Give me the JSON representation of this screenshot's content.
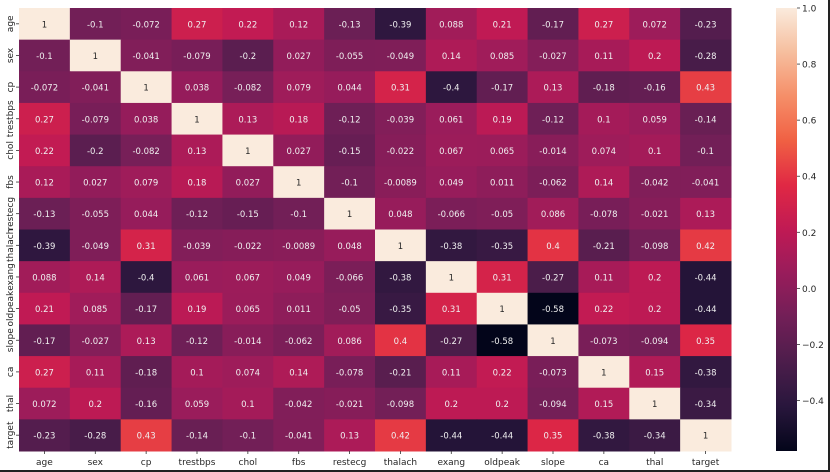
{
  "chart_data": {
    "type": "heatmap",
    "colormap": "rocket",
    "vmin": -0.58,
    "vmax": 1.0,
    "x_labels": [
      "age",
      "sex",
      "cp",
      "trestbps",
      "chol",
      "fbs",
      "restecg",
      "thalach",
      "exang",
      "oldpeak",
      "slope",
      "ca",
      "thal",
      "target"
    ],
    "y_labels": [
      "age",
      "sex",
      "cp",
      "trestbps",
      "chol",
      "fbs",
      "restecg",
      "thalach",
      "exang",
      "oldpeak",
      "slope",
      "ca",
      "thal",
      "target"
    ],
    "values": [
      [
        1,
        -0.1,
        -0.072,
        0.27,
        0.22,
        0.12,
        -0.13,
        -0.39,
        0.088,
        0.21,
        -0.17,
        0.27,
        0.072,
        -0.23
      ],
      [
        -0.1,
        1,
        -0.041,
        -0.079,
        -0.2,
        0.027,
        -0.055,
        -0.049,
        0.14,
        0.085,
        -0.027,
        0.11,
        0.2,
        -0.28
      ],
      [
        -0.072,
        -0.041,
        1,
        0.038,
        -0.082,
        0.079,
        0.044,
        0.31,
        -0.4,
        -0.17,
        0.13,
        -0.18,
        -0.16,
        0.43
      ],
      [
        0.27,
        -0.079,
        0.038,
        1,
        0.13,
        0.18,
        -0.12,
        -0.039,
        0.061,
        0.19,
        -0.12,
        0.1,
        0.059,
        -0.14
      ],
      [
        0.22,
        -0.2,
        -0.082,
        0.13,
        1,
        0.027,
        -0.15,
        -0.022,
        0.067,
        0.065,
        -0.014,
        0.074,
        0.1,
        -0.1
      ],
      [
        0.12,
        0.027,
        0.079,
        0.18,
        0.027,
        1,
        -0.1,
        -0.0089,
        0.049,
        0.011,
        -0.062,
        0.14,
        -0.042,
        -0.041
      ],
      [
        -0.13,
        -0.055,
        0.044,
        -0.12,
        -0.15,
        -0.1,
        1,
        0.048,
        -0.066,
        -0.05,
        0.086,
        -0.078,
        -0.021,
        0.13
      ],
      [
        -0.39,
        -0.049,
        0.31,
        -0.039,
        -0.022,
        -0.0089,
        0.048,
        1,
        -0.38,
        -0.35,
        0.4,
        -0.21,
        -0.098,
        0.42
      ],
      [
        0.088,
        0.14,
        -0.4,
        0.061,
        0.067,
        0.049,
        -0.066,
        -0.38,
        1,
        0.31,
        -0.27,
        0.11,
        0.2,
        -0.44
      ],
      [
        0.21,
        0.085,
        -0.17,
        0.19,
        0.065,
        0.011,
        -0.05,
        -0.35,
        0.31,
        1,
        -0.58,
        0.22,
        0.2,
        -0.44
      ],
      [
        -0.17,
        -0.027,
        0.13,
        -0.12,
        -0.014,
        -0.062,
        0.086,
        0.4,
        -0.27,
        -0.58,
        1,
        -0.073,
        -0.094,
        0.35
      ],
      [
        0.27,
        0.11,
        -0.18,
        0.1,
        0.074,
        0.14,
        -0.078,
        -0.21,
        0.11,
        0.22,
        -0.073,
        1,
        0.15,
        -0.38
      ],
      [
        0.072,
        0.2,
        -0.16,
        0.059,
        0.1,
        -0.042,
        -0.021,
        -0.098,
        0.2,
        0.2,
        -0.094,
        0.15,
        1,
        -0.34
      ],
      [
        -0.23,
        -0.28,
        0.43,
        -0.14,
        -0.1,
        -0.041,
        0.13,
        0.42,
        -0.44,
        -0.44,
        0.35,
        -0.38,
        -0.34,
        1
      ]
    ],
    "colorbar_ticks": [
      "1.0",
      "0.8",
      "0.6",
      "0.4",
      "0.2",
      "0.0",
      "−0.2",
      "−0.4"
    ],
    "colorbar_tick_values": [
      1.0,
      0.8,
      0.6,
      0.4,
      0.2,
      0.0,
      -0.2,
      -0.4
    ],
    "annotations": true
  }
}
